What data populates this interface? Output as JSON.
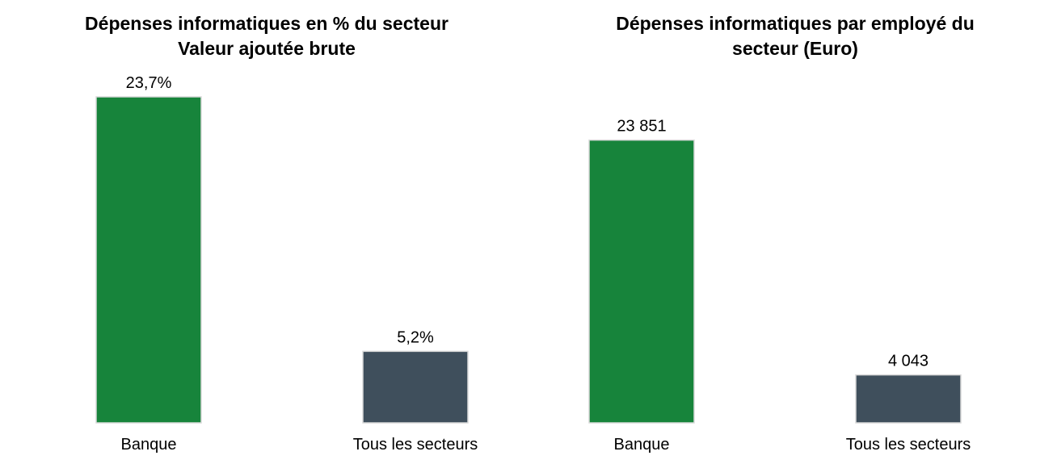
{
  "colors": {
    "banque": "#17843b",
    "tous": "#3f4f5c"
  },
  "chart_data": [
    {
      "type": "bar",
      "title_lines": [
        "Dépenses informatiques en % du secteur",
        "Valeur ajoutée brute"
      ],
      "categories": [
        "Banque",
        "Tous les secteurs"
      ],
      "values": [
        23.7,
        5.2
      ],
      "value_labels": [
        "23,7%",
        "5,2%"
      ],
      "unit": "%",
      "ylim": [
        0,
        23.7
      ],
      "grid": false
    },
    {
      "type": "bar",
      "title_lines": [
        "Dépenses informatiques par employé du",
        "secteur (Euro)"
      ],
      "categories": [
        "Banque",
        "Tous les secteurs"
      ],
      "values": [
        23851,
        4043
      ],
      "value_labels": [
        "23 851",
        "4 043"
      ],
      "unit": "Euro",
      "ylim": [
        0,
        27500
      ],
      "grid": false
    }
  ]
}
